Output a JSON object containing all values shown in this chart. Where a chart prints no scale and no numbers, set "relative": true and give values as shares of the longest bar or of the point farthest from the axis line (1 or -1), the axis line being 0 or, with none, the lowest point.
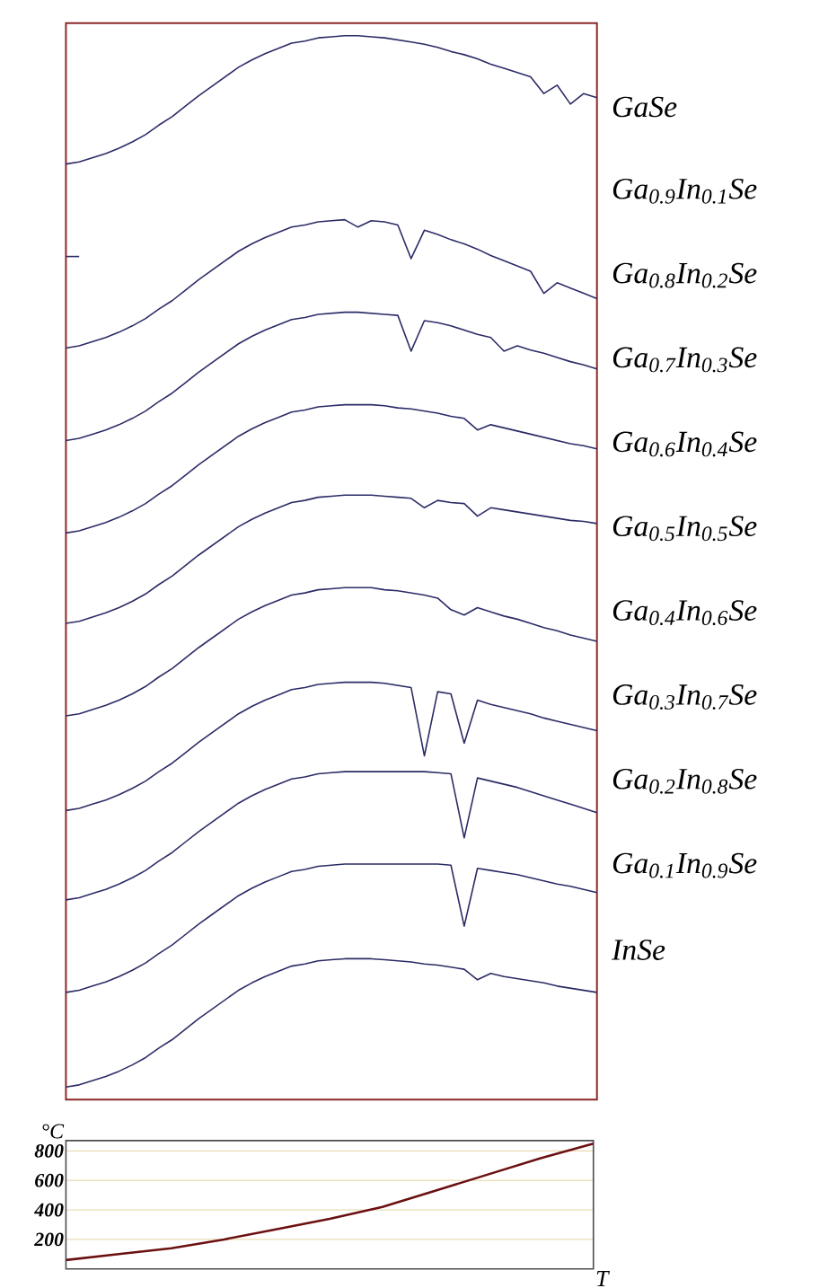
{
  "chart_data": [
    {
      "type": "line",
      "relative": true,
      "categories": [
        null,
        null,
        null,
        null,
        null,
        null,
        null,
        null,
        null,
        null,
        null,
        null,
        null,
        null,
        null,
        null,
        null,
        null,
        null,
        null,
        null,
        null,
        null,
        null,
        null,
        null,
        null,
        null,
        null,
        null,
        null,
        null,
        null,
        null,
        null,
        null,
        null,
        null,
        null,
        null,
        null
      ],
      "series": [
        {
          "name": "GaSe",
          "color": "#2b2b66",
          "values": [
            0.878,
            0.88,
            0.884,
            0.888,
            0.893,
            0.899,
            0.906,
            0.915,
            0.923,
            0.933,
            0.943,
            0.952,
            0.961,
            0.97,
            0.977,
            0.983,
            0.988,
            0.993,
            0.995,
            0.998,
            0.999,
            1.0,
            1.0,
            0.999,
            0.998,
            0.996,
            0.994,
            0.992,
            0.989,
            0.985,
            0.982,
            0.978,
            0.973,
            0.969,
            0.965,
            0.961,
            0.945,
            0.953,
            0.935,
            0.945,
            0.941
          ]
        },
        {
          "name": "Ga$_{0.9}$In$_{0.1}$Se",
          "color": "#2b2b66",
          "values": [
            0.79,
            0.79,
            null,
            null,
            null,
            null,
            null,
            null,
            null,
            null,
            null,
            null,
            null,
            null,
            null,
            null,
            null,
            null,
            null,
            null,
            null,
            null,
            null,
            null,
            null,
            null,
            null,
            null,
            null,
            null,
            null,
            null,
            null,
            null,
            null,
            null,
            null,
            null,
            null,
            null,
            null
          ]
        },
        {
          "name": "Ga$_{0.8}$In$_{0.2}$Se",
          "color": "#2b2b66",
          "values": [
            0.703,
            0.705,
            0.709,
            0.713,
            0.718,
            0.724,
            0.731,
            0.74,
            0.748,
            0.758,
            0.768,
            0.777,
            0.786,
            0.795,
            0.802,
            0.808,
            0.813,
            0.818,
            0.82,
            0.823,
            0.824,
            0.825,
            0.818,
            0.824,
            0.823,
            0.82,
            0.788,
            0.815,
            0.811,
            0.806,
            0.802,
            0.797,
            0.791,
            0.786,
            0.781,
            0.776,
            0.755,
            0.765,
            0.76,
            0.755,
            0.75
          ]
        },
        {
          "name": "Ga$_{0.7}$In$_{0.3}$Se",
          "color": "#2b2b66",
          "values": [
            0.615,
            0.617,
            0.621,
            0.625,
            0.63,
            0.636,
            0.643,
            0.652,
            0.66,
            0.67,
            0.68,
            0.689,
            0.698,
            0.707,
            0.714,
            0.72,
            0.725,
            0.73,
            0.732,
            0.735,
            0.736,
            0.737,
            0.737,
            0.736,
            0.735,
            0.734,
            0.7,
            0.729,
            0.727,
            0.724,
            0.72,
            0.716,
            0.713,
            0.7,
            0.705,
            0.701,
            0.698,
            0.694,
            0.69,
            0.687,
            0.683
          ]
        },
        {
          "name": "Ga$_{0.6}$In$_{0.4}$Se",
          "color": "#2b2b66",
          "values": [
            0.527,
            0.529,
            0.533,
            0.537,
            0.542,
            0.548,
            0.555,
            0.564,
            0.572,
            0.582,
            0.592,
            0.601,
            0.61,
            0.619,
            0.626,
            0.632,
            0.637,
            0.642,
            0.644,
            0.647,
            0.648,
            0.649,
            0.649,
            0.649,
            0.648,
            0.646,
            0.645,
            0.643,
            0.641,
            0.638,
            0.636,
            0.625,
            0.63,
            0.627,
            0.624,
            0.621,
            0.618,
            0.615,
            0.612,
            0.61,
            0.607
          ]
        },
        {
          "name": "Ga$_{0.5}$In$_{0.5}$Se",
          "color": "#2b2b66",
          "values": [
            0.441,
            0.443,
            0.447,
            0.451,
            0.456,
            0.462,
            0.469,
            0.478,
            0.486,
            0.496,
            0.506,
            0.515,
            0.524,
            0.533,
            0.54,
            0.546,
            0.551,
            0.556,
            0.558,
            0.561,
            0.562,
            0.563,
            0.563,
            0.563,
            0.562,
            0.561,
            0.56,
            0.551,
            0.558,
            0.556,
            0.555,
            0.543,
            0.551,
            0.549,
            0.547,
            0.545,
            0.543,
            0.541,
            0.539,
            0.538,
            0.536
          ]
        },
        {
          "name": "Ga$_{0.4}$In$_{0.6}$Se",
          "color": "#2b2b66",
          "values": [
            0.353,
            0.355,
            0.359,
            0.363,
            0.368,
            0.374,
            0.381,
            0.39,
            0.398,
            0.408,
            0.418,
            0.427,
            0.436,
            0.445,
            0.452,
            0.458,
            0.463,
            0.468,
            0.47,
            0.473,
            0.474,
            0.475,
            0.475,
            0.475,
            0.473,
            0.472,
            0.47,
            0.468,
            0.465,
            0.454,
            0.449,
            0.456,
            0.452,
            0.448,
            0.445,
            0.441,
            0.437,
            0.434,
            0.43,
            0.427,
            0.424
          ]
        },
        {
          "name": "Ga$_{0.3}$In$_{0.7}$Se",
          "color": "#2b2b66",
          "values": [
            0.263,
            0.265,
            0.269,
            0.273,
            0.278,
            0.284,
            0.291,
            0.3,
            0.308,
            0.318,
            0.328,
            0.337,
            0.346,
            0.355,
            0.362,
            0.368,
            0.373,
            0.378,
            0.38,
            0.383,
            0.384,
            0.385,
            0.385,
            0.385,
            0.384,
            0.382,
            0.38,
            0.315,
            0.376,
            0.374,
            0.327,
            0.368,
            0.364,
            0.361,
            0.358,
            0.355,
            0.351,
            0.348,
            0.345,
            0.342,
            0.339
          ]
        },
        {
          "name": "Ga$_{0.2}$In$_{0.8}$Se",
          "color": "#2b2b66",
          "values": [
            0.178,
            0.18,
            0.184,
            0.188,
            0.193,
            0.199,
            0.206,
            0.215,
            0.223,
            0.233,
            0.243,
            0.252,
            0.261,
            0.27,
            0.277,
            0.283,
            0.288,
            0.293,
            0.295,
            0.298,
            0.299,
            0.3,
            0.3,
            0.3,
            0.3,
            0.3,
            0.3,
            0.3,
            0.299,
            0.298,
            0.237,
            0.294,
            0.291,
            0.288,
            0.285,
            0.281,
            0.277,
            0.273,
            0.269,
            0.265,
            0.261
          ]
        },
        {
          "name": "Ga$_{0.1}$In$_{0.9}$Se",
          "color": "#2b2b66",
          "values": [
            0.09,
            0.092,
            0.096,
            0.1,
            0.105,
            0.111,
            0.118,
            0.127,
            0.135,
            0.145,
            0.155,
            0.164,
            0.173,
            0.182,
            0.189,
            0.195,
            0.2,
            0.205,
            0.207,
            0.21,
            0.211,
            0.212,
            0.212,
            0.212,
            0.212,
            0.212,
            0.212,
            0.212,
            0.212,
            0.211,
            0.153,
            0.208,
            0.206,
            0.204,
            0.202,
            0.199,
            0.196,
            0.193,
            0.191,
            0.188,
            0.185
          ]
        },
        {
          "name": "InSe",
          "color": "#2b2b66",
          "values": [
            0.0,
            0.002,
            0.006,
            0.01,
            0.015,
            0.021,
            0.028,
            0.037,
            0.045,
            0.055,
            0.065,
            0.074,
            0.083,
            0.092,
            0.099,
            0.105,
            0.11,
            0.115,
            0.117,
            0.12,
            0.121,
            0.122,
            0.122,
            0.122,
            0.121,
            0.12,
            0.119,
            0.117,
            0.116,
            0.114,
            0.112,
            0.102,
            0.108,
            0.105,
            0.103,
            0.101,
            0.099,
            0.096,
            0.094,
            0.092,
            0.09
          ]
        }
      ]
    },
    {
      "type": "line",
      "xlabel": "T",
      "ylabel": "°C",
      "categories": [
        null,
        null,
        null,
        null,
        null,
        null,
        null,
        null,
        null,
        null,
        null
      ],
      "values": [
        60,
        100,
        140,
        200,
        270,
        340,
        420,
        530,
        640,
        750,
        850
      ],
      "color": "#6b1010",
      "ylim": [
        0,
        870
      ],
      "yticks": [
        200,
        400,
        600,
        800
      ],
      "grid": "y"
    }
  ]
}
